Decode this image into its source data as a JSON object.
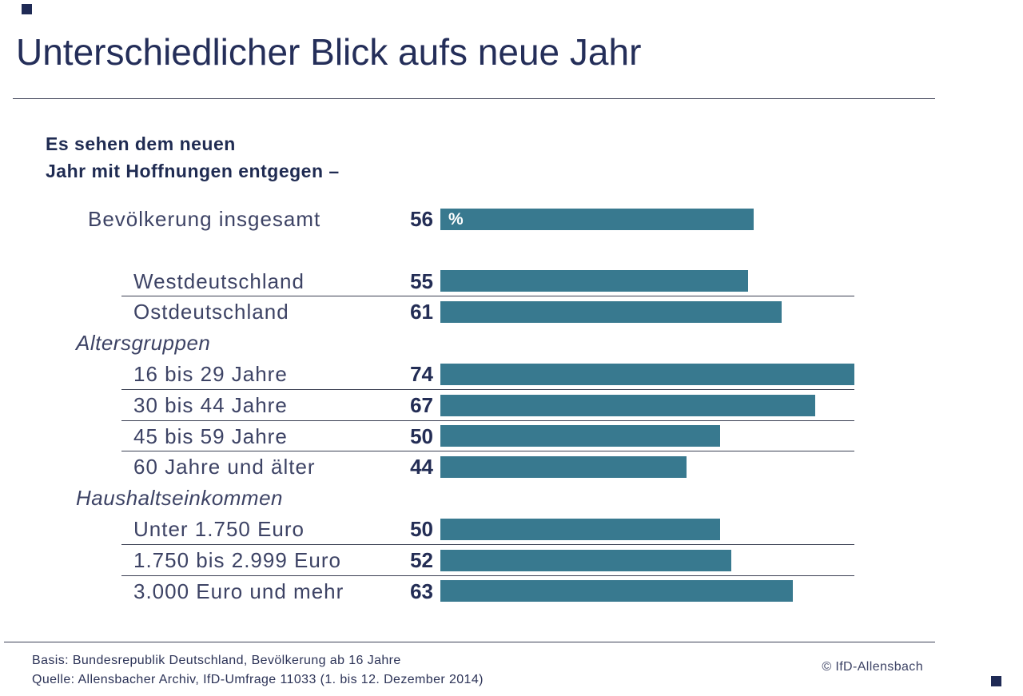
{
  "page": {
    "title": "Unterschiedlicher Blick aufs neue Jahr",
    "subtitle_line1": "Es sehen dem neuen",
    "subtitle_line2": "Jahr mit Hoffnungen entgegen –",
    "footer": {
      "basis": "Basis: Bundesrepublik Deutschland, Bevölkerung ab 16 Jahre",
      "quelle": "Quelle: Allensbacher Archiv, IfD-Umfrage 11033 (1. bis 12. Dezember 2014)",
      "copyright": "© IfD-Allensbach"
    },
    "colors": {
      "navy": "#232d55",
      "label_navy": "#3d4365",
      "bar_teal": "#38798f"
    }
  },
  "chart_data": {
    "type": "bar",
    "orientation": "horizontal",
    "title": "Es sehen dem neuen Jahr mit Hoffnungen entgegen –",
    "unit": "%",
    "unit_label_shown_in_first_bar": "%",
    "xlim": [
      0,
      74
    ],
    "grid": "off",
    "legend": "none",
    "categories": [
      "Bevölkerung insgesamt",
      "Westdeutschland",
      "Ostdeutschland",
      "16 bis 29 Jahre",
      "30 bis 44 Jahre",
      "45 bis 59 Jahre",
      "60 Jahre und älter",
      "Unter 1.750 Euro",
      "1.750 bis 2.999 Euro",
      "3.000 Euro und mehr"
    ],
    "values": [
      56,
      55,
      61,
      74,
      67,
      50,
      44,
      50,
      52,
      63
    ],
    "section_headers": [
      "Altersgruppen",
      "Haushaltseinkommen"
    ],
    "rows": [
      {
        "kind": "bar",
        "label": "Bevölkerung insgesamt",
        "value": 56,
        "indent": 0,
        "underline": false,
        "show_percent": true
      },
      {
        "kind": "spacer"
      },
      {
        "kind": "bar",
        "label": "Westdeutschland",
        "value": 55,
        "indent": 1,
        "underline": true,
        "show_percent": false
      },
      {
        "kind": "bar",
        "label": "Ostdeutschland",
        "value": 61,
        "indent": 1,
        "underline": false,
        "show_percent": false
      },
      {
        "kind": "section",
        "label": "Altersgruppen"
      },
      {
        "kind": "bar",
        "label": "16 bis 29 Jahre",
        "value": 74,
        "indent": 1,
        "underline": true,
        "show_percent": false
      },
      {
        "kind": "bar",
        "label": "30 bis 44 Jahre",
        "value": 67,
        "indent": 1,
        "underline": true,
        "show_percent": false
      },
      {
        "kind": "bar",
        "label": "45 bis 59 Jahre",
        "value": 50,
        "indent": 1,
        "underline": true,
        "show_percent": false
      },
      {
        "kind": "bar",
        "label": "60 Jahre und älter",
        "value": 44,
        "indent": 1,
        "underline": false,
        "show_percent": false
      },
      {
        "kind": "section",
        "label": "Haushaltseinkommen"
      },
      {
        "kind": "bar",
        "label": "Unter 1.750 Euro",
        "value": 50,
        "indent": 1,
        "underline": true,
        "show_percent": false
      },
      {
        "kind": "bar",
        "label": "1.750 bis 2.999 Euro",
        "value": 52,
        "indent": 1,
        "underline": true,
        "show_percent": false
      },
      {
        "kind": "bar",
        "label": "3.000 Euro und mehr",
        "value": 63,
        "indent": 1,
        "underline": false,
        "show_percent": false
      }
    ]
  }
}
